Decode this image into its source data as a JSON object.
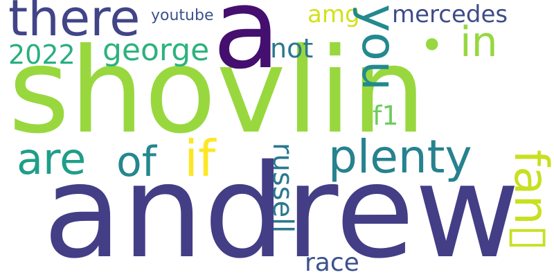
{
  "words": {
    "andrew": {
      "text": "andrew",
      "color": "#433e85"
    },
    "shovlin": {
      "text": "shovlin",
      "color": "#98d83e"
    },
    "a": {
      "text": "a",
      "color": "#440f6e"
    },
    "there": {
      "text": "there",
      "color": "#414487"
    },
    "youtube": {
      "text": "youtube",
      "color": "#3a538b"
    },
    "amg": {
      "text": "amg",
      "color": "#d2e21b"
    },
    "mercedes": {
      "text": "mercedes",
      "color": "#3e4c8a"
    },
    "you": {
      "text": "you",
      "color": "#23898e"
    },
    "in": {
      "text": "in",
      "color": "#95d840"
    },
    "dot": {
      "text": "•",
      "color": "#95d840"
    },
    "george": {
      "text": "george",
      "color": "#2db27d"
    },
    "not": {
      "text": "not",
      "color": "#2a788e"
    },
    "year": {
      "text": "2022",
      "color": "#29af7f"
    },
    "f1": {
      "text": "f1",
      "color": "#6ccd5a"
    },
    "are": {
      "text": "are",
      "color": "#1f9e89"
    },
    "of": {
      "text": "of",
      "color": "#24878e"
    },
    "if": {
      "text": "if",
      "color": "#fde725"
    },
    "plenty": {
      "text": "plenty",
      "color": "#26828e"
    },
    "fan": {
      "text": "fan▯",
      "color": "#c8e020"
    },
    "russell": {
      "text": "russell",
      "color": "#2a788e"
    },
    "race": {
      "text": "race",
      "color": "#3b528b"
    }
  }
}
